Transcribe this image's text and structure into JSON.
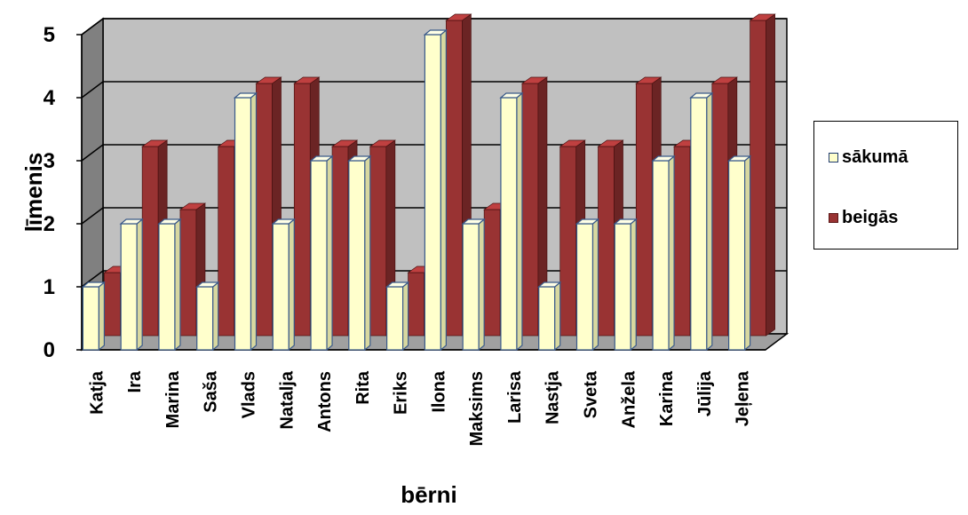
{
  "chart_data": {
    "type": "bar",
    "style": "3d-clustered-column",
    "xlabel": "bērni",
    "ylabel": "līmenis",
    "ylim": [
      0,
      5
    ],
    "yticks": [
      "0",
      "1",
      "2",
      "3",
      "4",
      "5"
    ],
    "grid": true,
    "legend_position": "right",
    "categories": [
      "Katja",
      "Ira",
      "Marina",
      "Saša",
      "Vlads",
      "Natalja",
      "Antons",
      "Rita",
      "Eriks",
      "Ilona",
      "Maksims",
      "Larisa",
      "Nastja",
      "Sveta",
      "Anžela",
      "Karina",
      "Jūlija",
      "Jeļena"
    ],
    "series": [
      {
        "name": "sākumā",
        "color": "#ffffcc",
        "values": [
          1,
          2,
          2,
          1,
          4,
          2,
          3,
          3,
          1,
          5,
          2,
          4,
          1,
          2,
          2,
          3,
          4,
          3
        ]
      },
      {
        "name": "beigās",
        "color": "#993333",
        "values": [
          1,
          3,
          2,
          3,
          4,
          4,
          3,
          3,
          1,
          5,
          2,
          4,
          3,
          3,
          4,
          3,
          4,
          5
        ]
      }
    ],
    "colors": {
      "wall": "#c0c0c0",
      "side_wall": "#808080",
      "floor": "#a0a0a0",
      "gridline": "#000000"
    }
  }
}
